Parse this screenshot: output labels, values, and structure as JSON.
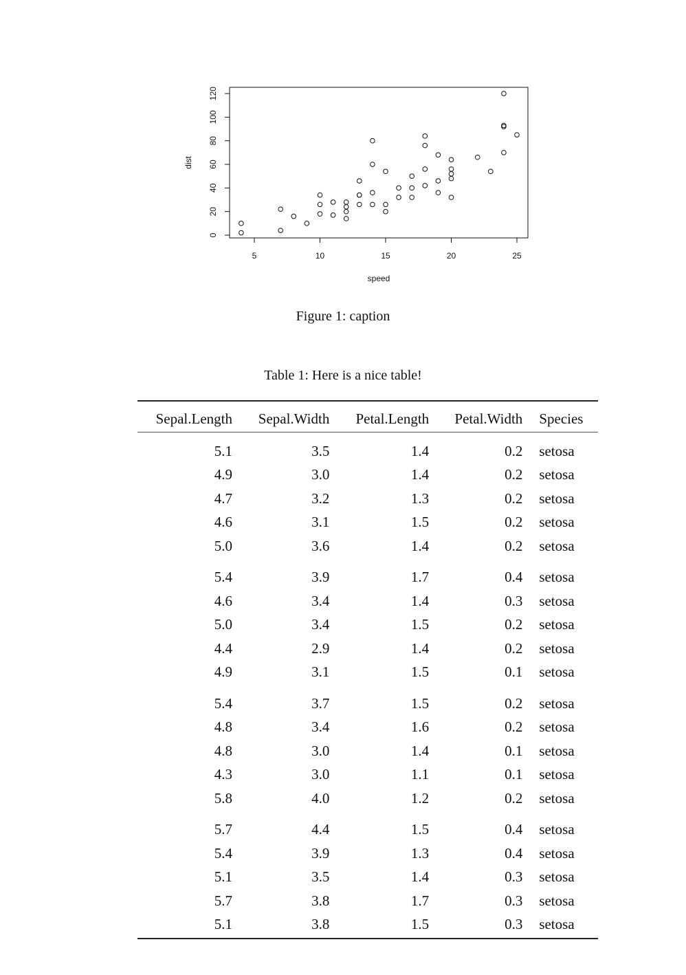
{
  "chart_data": {
    "type": "scatter",
    "title": "",
    "xlabel": "speed",
    "ylabel": "dist",
    "xlim": [
      4,
      25
    ],
    "ylim": [
      0,
      120
    ],
    "xticks": [
      5,
      10,
      15,
      20,
      25
    ],
    "yticks": [
      0,
      20,
      40,
      60,
      80,
      100,
      120
    ],
    "points": [
      [
        4,
        2
      ],
      [
        4,
        10
      ],
      [
        7,
        4
      ],
      [
        7,
        22
      ],
      [
        8,
        16
      ],
      [
        9,
        10
      ],
      [
        10,
        18
      ],
      [
        10,
        26
      ],
      [
        10,
        34
      ],
      [
        11,
        17
      ],
      [
        11,
        28
      ],
      [
        12,
        14
      ],
      [
        12,
        20
      ],
      [
        12,
        24
      ],
      [
        12,
        28
      ],
      [
        13,
        26
      ],
      [
        13,
        34
      ],
      [
        13,
        34
      ],
      [
        13,
        46
      ],
      [
        14,
        26
      ],
      [
        14,
        36
      ],
      [
        14,
        60
      ],
      [
        14,
        80
      ],
      [
        15,
        20
      ],
      [
        15,
        26
      ],
      [
        15,
        54
      ],
      [
        16,
        32
      ],
      [
        16,
        40
      ],
      [
        17,
        32
      ],
      [
        17,
        40
      ],
      [
        17,
        50
      ],
      [
        18,
        42
      ],
      [
        18,
        56
      ],
      [
        18,
        76
      ],
      [
        18,
        84
      ],
      [
        19,
        36
      ],
      [
        19,
        46
      ],
      [
        19,
        68
      ],
      [
        20,
        32
      ],
      [
        20,
        48
      ],
      [
        20,
        52
      ],
      [
        20,
        56
      ],
      [
        20,
        64
      ],
      [
        22,
        66
      ],
      [
        23,
        54
      ],
      [
        24,
        70
      ],
      [
        24,
        92
      ],
      [
        24,
        93
      ],
      [
        24,
        120
      ],
      [
        25,
        85
      ]
    ]
  },
  "figure_caption": "Figure 1: caption",
  "table_caption": "Table 1: Here is a nice table!",
  "table": {
    "headers": [
      "Sepal.Length",
      "Sepal.Width",
      "Petal.Length",
      "Petal.Width",
      "Species"
    ],
    "rows": [
      [
        "5.1",
        "3.5",
        "1.4",
        "0.2",
        "setosa"
      ],
      [
        "4.9",
        "3.0",
        "1.4",
        "0.2",
        "setosa"
      ],
      [
        "4.7",
        "3.2",
        "1.3",
        "0.2",
        "setosa"
      ],
      [
        "4.6",
        "3.1",
        "1.5",
        "0.2",
        "setosa"
      ],
      [
        "5.0",
        "3.6",
        "1.4",
        "0.2",
        "setosa"
      ],
      [
        "5.4",
        "3.9",
        "1.7",
        "0.4",
        "setosa"
      ],
      [
        "4.6",
        "3.4",
        "1.4",
        "0.3",
        "setosa"
      ],
      [
        "5.0",
        "3.4",
        "1.5",
        "0.2",
        "setosa"
      ],
      [
        "4.4",
        "2.9",
        "1.4",
        "0.2",
        "setosa"
      ],
      [
        "4.9",
        "3.1",
        "1.5",
        "0.1",
        "setosa"
      ],
      [
        "5.4",
        "3.7",
        "1.5",
        "0.2",
        "setosa"
      ],
      [
        "4.8",
        "3.4",
        "1.6",
        "0.2",
        "setosa"
      ],
      [
        "4.8",
        "3.0",
        "1.4",
        "0.1",
        "setosa"
      ],
      [
        "4.3",
        "3.0",
        "1.1",
        "0.1",
        "setosa"
      ],
      [
        "5.8",
        "4.0",
        "1.2",
        "0.2",
        "setosa"
      ],
      [
        "5.7",
        "4.4",
        "1.5",
        "0.4",
        "setosa"
      ],
      [
        "5.4",
        "3.9",
        "1.3",
        "0.4",
        "setosa"
      ],
      [
        "5.1",
        "3.5",
        "1.4",
        "0.3",
        "setosa"
      ],
      [
        "5.7",
        "3.8",
        "1.7",
        "0.3",
        "setosa"
      ],
      [
        "5.1",
        "3.8",
        "1.5",
        "0.3",
        "setosa"
      ]
    ]
  }
}
